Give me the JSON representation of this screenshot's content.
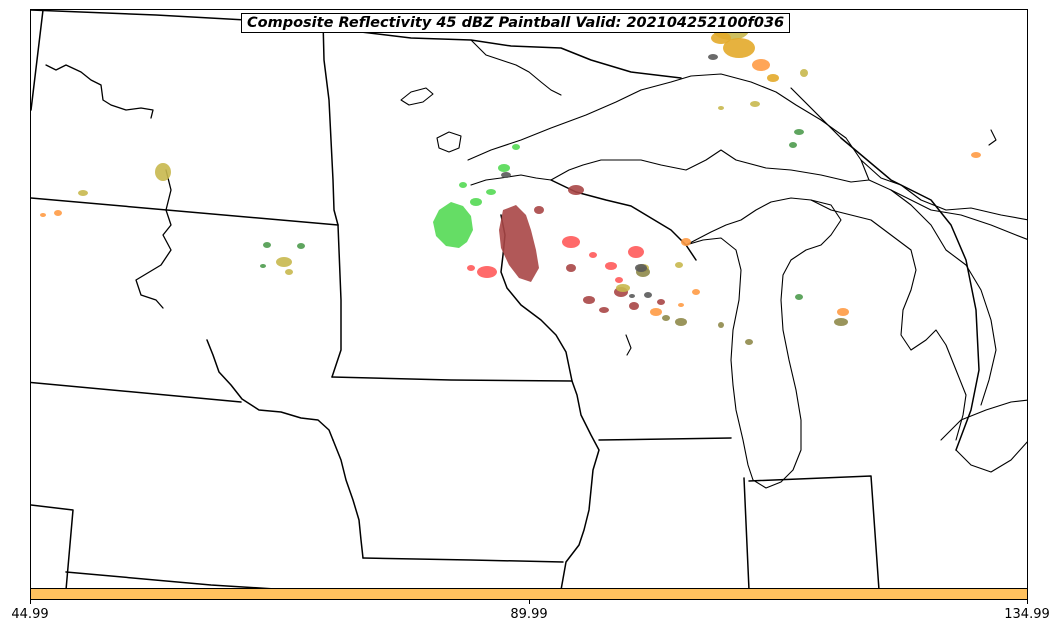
{
  "title": "Composite Reflectivity 45 dBZ Paintball Valid: 202104252100f036",
  "colorbar": {
    "color": "#ffc15e",
    "ticks": [
      "44.99",
      "89.99",
      "134.99"
    ]
  },
  "palette": {
    "green": "#5ddb5d",
    "dark_green": "#4e9b4e",
    "red": "#ff5a5a",
    "dark_red": "#a84646",
    "orange": "#ff9b45",
    "gold": "#e3aa2a",
    "olive": "#c8b84e",
    "dark_olive": "#8f8a4a",
    "gray": "#5a5a5a"
  }
}
